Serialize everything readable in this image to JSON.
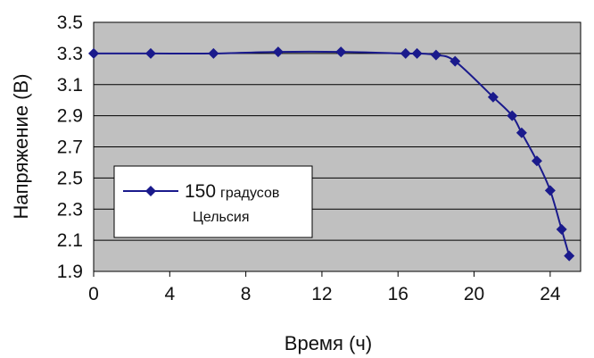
{
  "chart_data": {
    "type": "line",
    "xlabel": "Время (ч)",
    "ylabel": "Напряжение (В)",
    "xlim": [
      0,
      25.6
    ],
    "ylim": [
      1.9,
      3.5
    ],
    "x_ticks": [
      "0",
      "4",
      "8",
      "12",
      "16",
      "20",
      "24"
    ],
    "y_ticks": [
      "1.9",
      "2.1",
      "2.3",
      "2.5",
      "2.7",
      "2.9",
      "3.1",
      "3.3",
      "3.5"
    ],
    "grid": "horizontal",
    "legend_position": "middle-left",
    "series": [
      {
        "name_number": "150",
        "name_unit": "градусов",
        "name_line2": "Цельсия",
        "color": "#1a1a8c",
        "x": [
          0,
          3,
          6.3,
          9.7,
          13,
          16.4,
          17,
          18,
          19,
          21,
          22,
          22.5,
          23.3,
          24,
          24.6,
          25
        ],
        "y": [
          3.3,
          3.3,
          3.3,
          3.31,
          3.31,
          3.3,
          3.3,
          3.29,
          3.25,
          3.02,
          2.9,
          2.79,
          2.61,
          2.42,
          2.17,
          2.0
        ]
      }
    ]
  }
}
